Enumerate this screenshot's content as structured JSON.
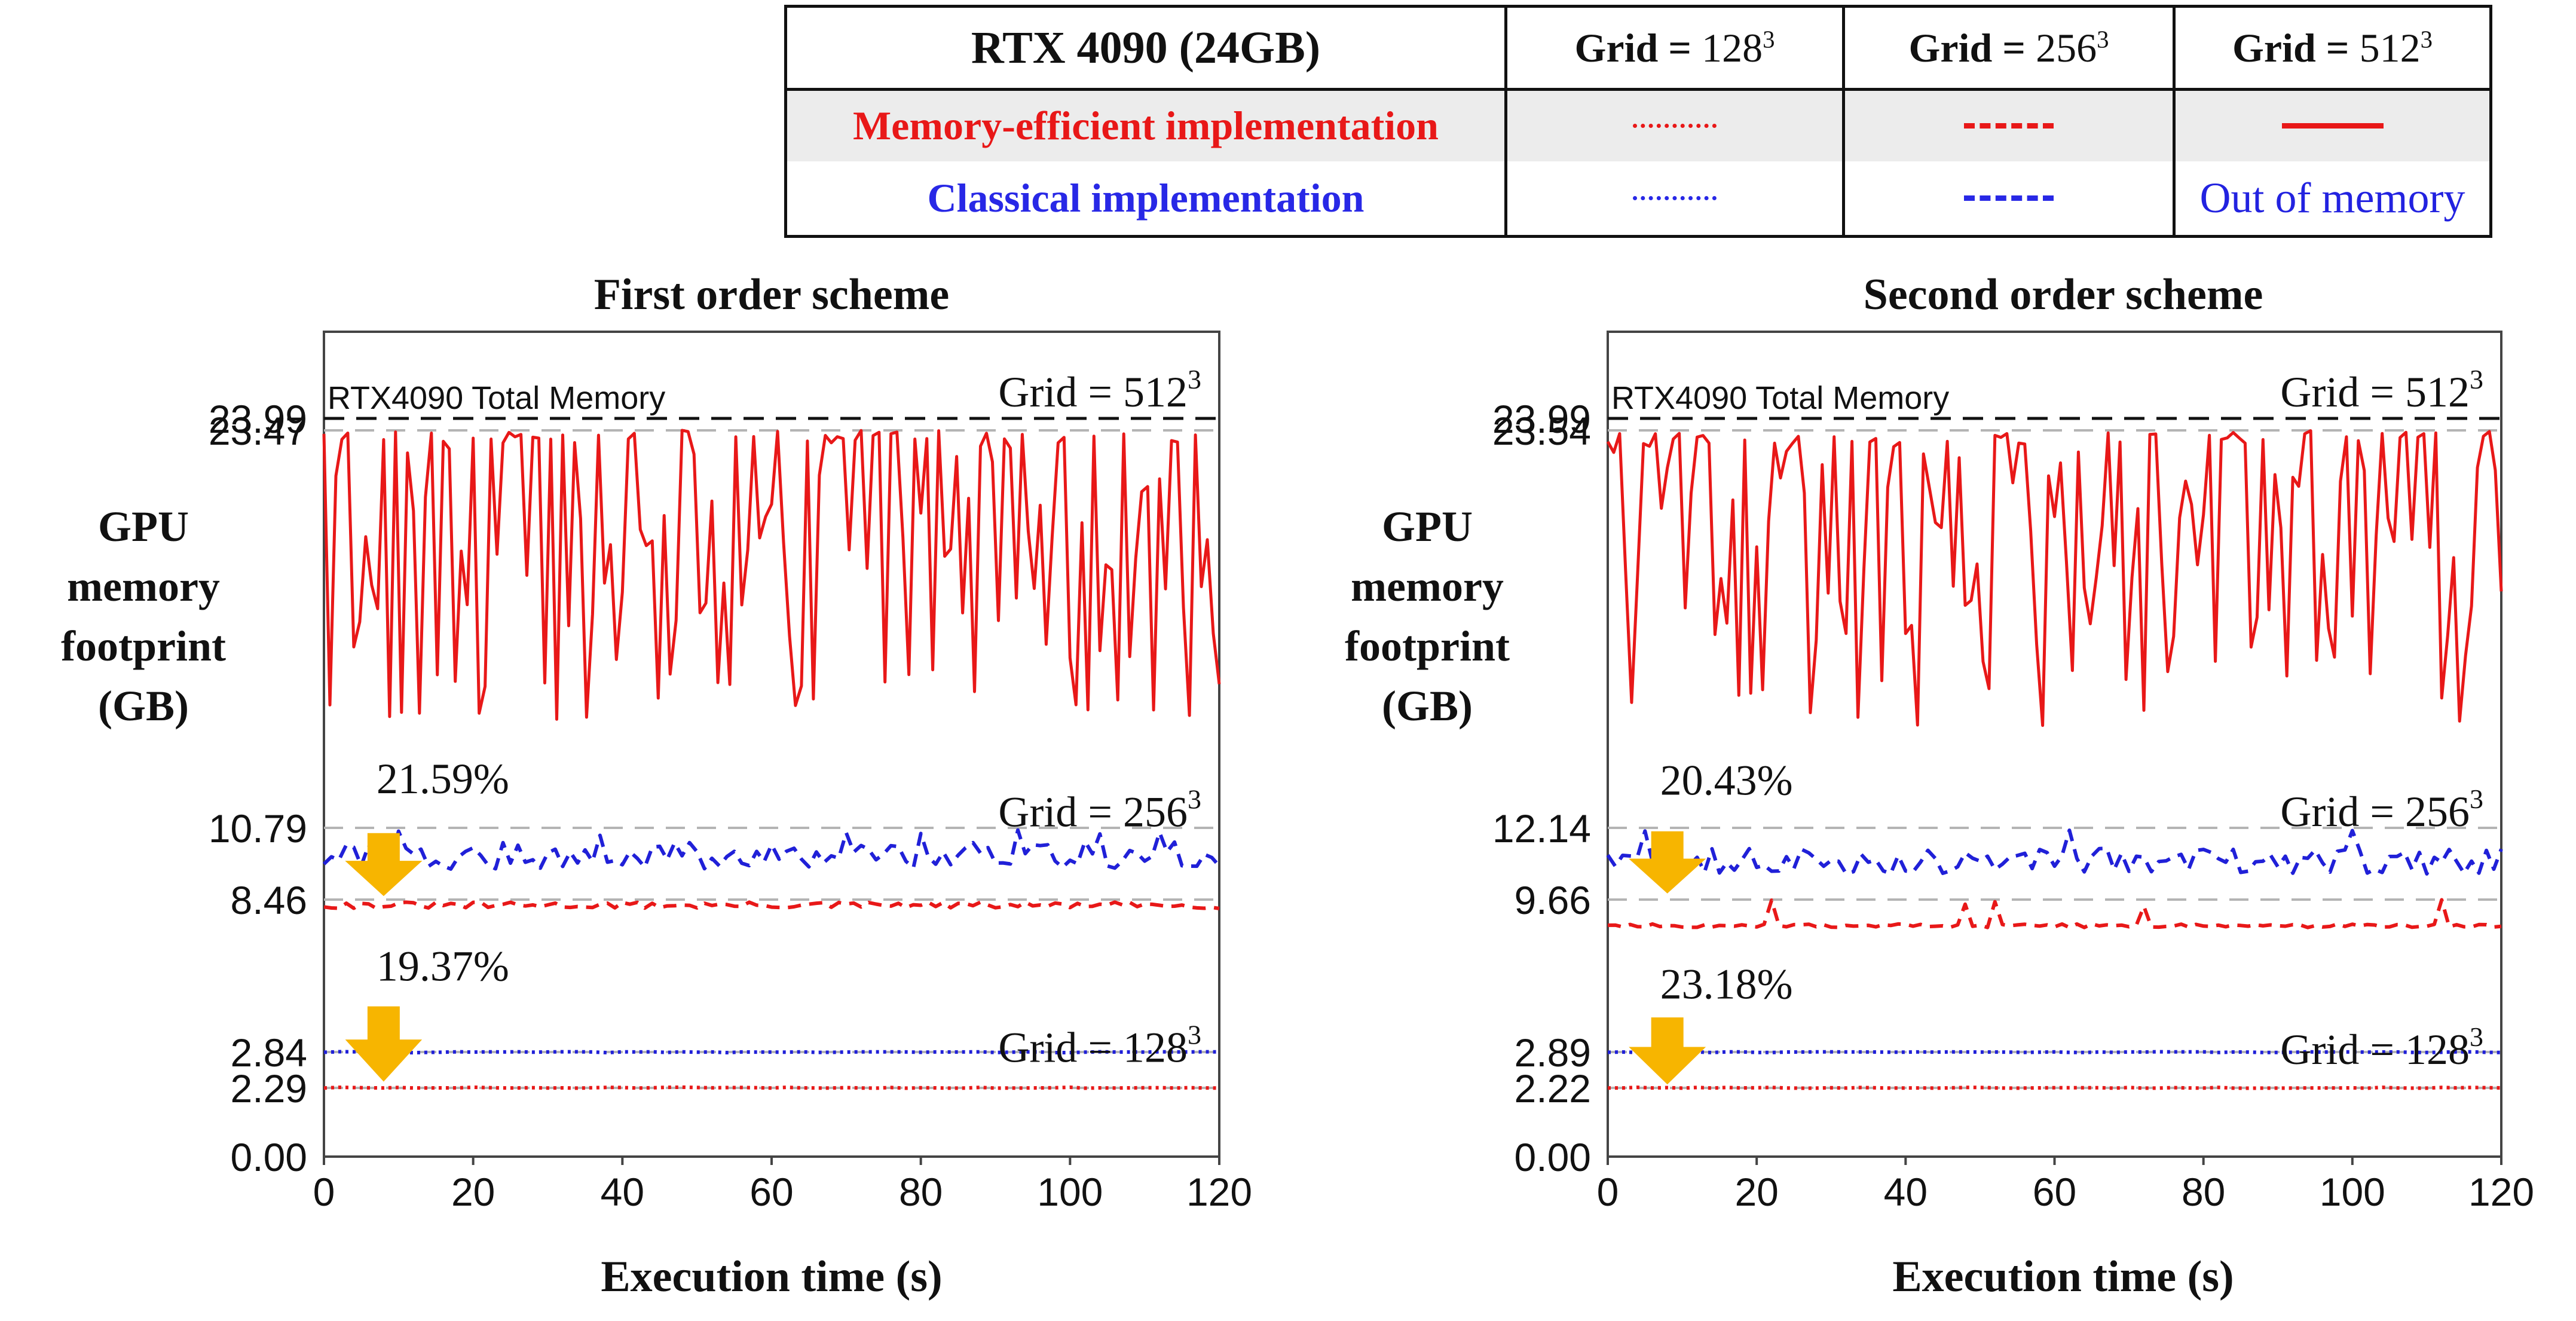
{
  "legend": {
    "header": "RTX 4090 (24GB)",
    "columns": [
      {
        "prefix": "Grid = ",
        "num": "128",
        "exp": "3"
      },
      {
        "prefix": "Grid = ",
        "num": "256",
        "exp": "3"
      },
      {
        "prefix": "Grid = ",
        "num": "512",
        "exp": "3"
      }
    ],
    "rows": [
      {
        "label": "Memory-efficient implementation",
        "color": "#e81818"
      },
      {
        "label": "Classical implementation",
        "color": "#2828e6",
        "last_cell": "Out of memory"
      }
    ]
  },
  "chart_data": [
    {
      "type": "line",
      "title": "First order scheme",
      "xlabel": "Execution time (s)",
      "ylabel": [
        "GPU",
        "memory",
        "footprint",
        "(GB)"
      ],
      "xlim": [
        0,
        120
      ],
      "xticks": [
        "0",
        "20",
        "40",
        "60",
        "80",
        "100",
        "120"
      ],
      "yticks": [
        "0.00",
        "2.29",
        "2.84",
        "8.46",
        "10.79",
        "23.47",
        "23.99"
      ],
      "ytick_values": [
        0.0,
        2.29,
        2.84,
        8.46,
        10.79,
        23.47,
        23.99
      ],
      "total_memory_label": "RTX4090 Total Memory",
      "grid_labels": [
        {
          "prefix": "Grid = ",
          "num": "512",
          "exp": "3",
          "y": 24.6
        },
        {
          "prefix": "Grid = ",
          "num": "256",
          "exp": "3",
          "y": 11.3
        },
        {
          "prefix": "Grid = ",
          "num": "128",
          "exp": "3",
          "y": 3.0
        }
      ],
      "reductions": [
        {
          "label": "21.59%",
          "x": 8,
          "y_top": 10.6,
          "y_bot": 8.6,
          "label_y": 12.35
        },
        {
          "label": "19.37%",
          "x": 8,
          "y_top": 4.5,
          "y_bot": 2.4,
          "label_y": 6.0
        }
      ],
      "series": [
        {
          "name": "Memory-efficient 512^3",
          "color": "#e81818",
          "style": "solid",
          "base": 17.5,
          "amp": 5.9,
          "lo": 14.0,
          "hi": 23.47,
          "seed": 11,
          "n": 150
        },
        {
          "name": "Classical 256^3",
          "color": "#2020d8",
          "style": "dash",
          "base": 9.9,
          "amp": 0.45,
          "lo": 9.4,
          "hi": 10.79,
          "seed": 21,
          "n": 120
        },
        {
          "name": "Memory-efficient 256^3",
          "color": "#e81818",
          "style": "dash",
          "base": 8.25,
          "amp": 0.12,
          "lo": 8.1,
          "hi": 8.46,
          "seed": 31,
          "n": 120
        },
        {
          "name": "Classical 128^3",
          "color": "#2020d8",
          "style": "dot",
          "base": 2.84,
          "amp": 0.01,
          "lo": 2.83,
          "hi": 2.85,
          "seed": 41,
          "n": 60
        },
        {
          "name": "Memory-efficient 128^3",
          "color": "#e81818",
          "style": "dot",
          "base": 2.29,
          "amp": 0.01,
          "lo": 2.28,
          "hi": 2.3,
          "seed": 51,
          "n": 60
        }
      ]
    },
    {
      "type": "line",
      "title": "Second order scheme",
      "xlabel": "Execution time (s)",
      "ylabel": [
        "GPU",
        "memory",
        "footprint",
        "(GB)"
      ],
      "xlim": [
        0,
        120
      ],
      "xticks": [
        "0",
        "20",
        "40",
        "60",
        "80",
        "100",
        "120"
      ],
      "yticks": [
        "0.00",
        "2.22",
        "2.89",
        "9.66",
        "12.14",
        "23.54",
        "23.99"
      ],
      "ytick_values": [
        0.0,
        2.22,
        2.89,
        9.66,
        12.14,
        23.54,
        23.99
      ],
      "total_memory_label": "RTX4090 Total Memory",
      "grid_labels": [
        {
          "prefix": "Grid = ",
          "num": "512",
          "exp": "3",
          "y": 24.6
        },
        {
          "prefix": "Grid = ",
          "num": "256",
          "exp": "3",
          "y": 12.6
        },
        {
          "prefix": "Grid = ",
          "num": "128",
          "exp": "3",
          "y": 3.0
        }
      ],
      "reductions": [
        {
          "label": "20.43%",
          "x": 8,
          "y_top": 12.0,
          "y_bot": 9.9,
          "label_y": 13.5
        },
        {
          "label": "23.18%",
          "x": 8,
          "y_top": 4.4,
          "y_bot": 2.3,
          "label_y": 5.9
        }
      ],
      "series": [
        {
          "name": "Memory-efficient 512^3",
          "color": "#e81818",
          "style": "solid",
          "base": 18.4,
          "amp": 5.2,
          "lo": 15.0,
          "hi": 23.54,
          "seed": 61,
          "n": 150
        },
        {
          "name": "Classical 256^3",
          "color": "#2020d8",
          "style": "dash",
          "base": 11.0,
          "amp": 0.45,
          "lo": 10.3,
          "hi": 12.14,
          "seed": 71,
          "n": 120
        },
        {
          "name": "Memory-efficient 256^3",
          "color": "#e81818",
          "style": "dash",
          "base": 8.5,
          "amp": 0.08,
          "lo": 8.4,
          "hi": 9.66,
          "seed": 81,
          "n": 120
        },
        {
          "name": "Classical 128^3",
          "color": "#2020d8",
          "style": "dot",
          "base": 2.89,
          "amp": 0.01,
          "lo": 2.88,
          "hi": 2.9,
          "seed": 91,
          "n": 60
        },
        {
          "name": "Memory-efficient 128^3",
          "color": "#e81818",
          "style": "dot",
          "base": 2.22,
          "amp": 0.01,
          "lo": 2.21,
          "hi": 2.23,
          "seed": 101,
          "n": 60
        }
      ]
    }
  ]
}
